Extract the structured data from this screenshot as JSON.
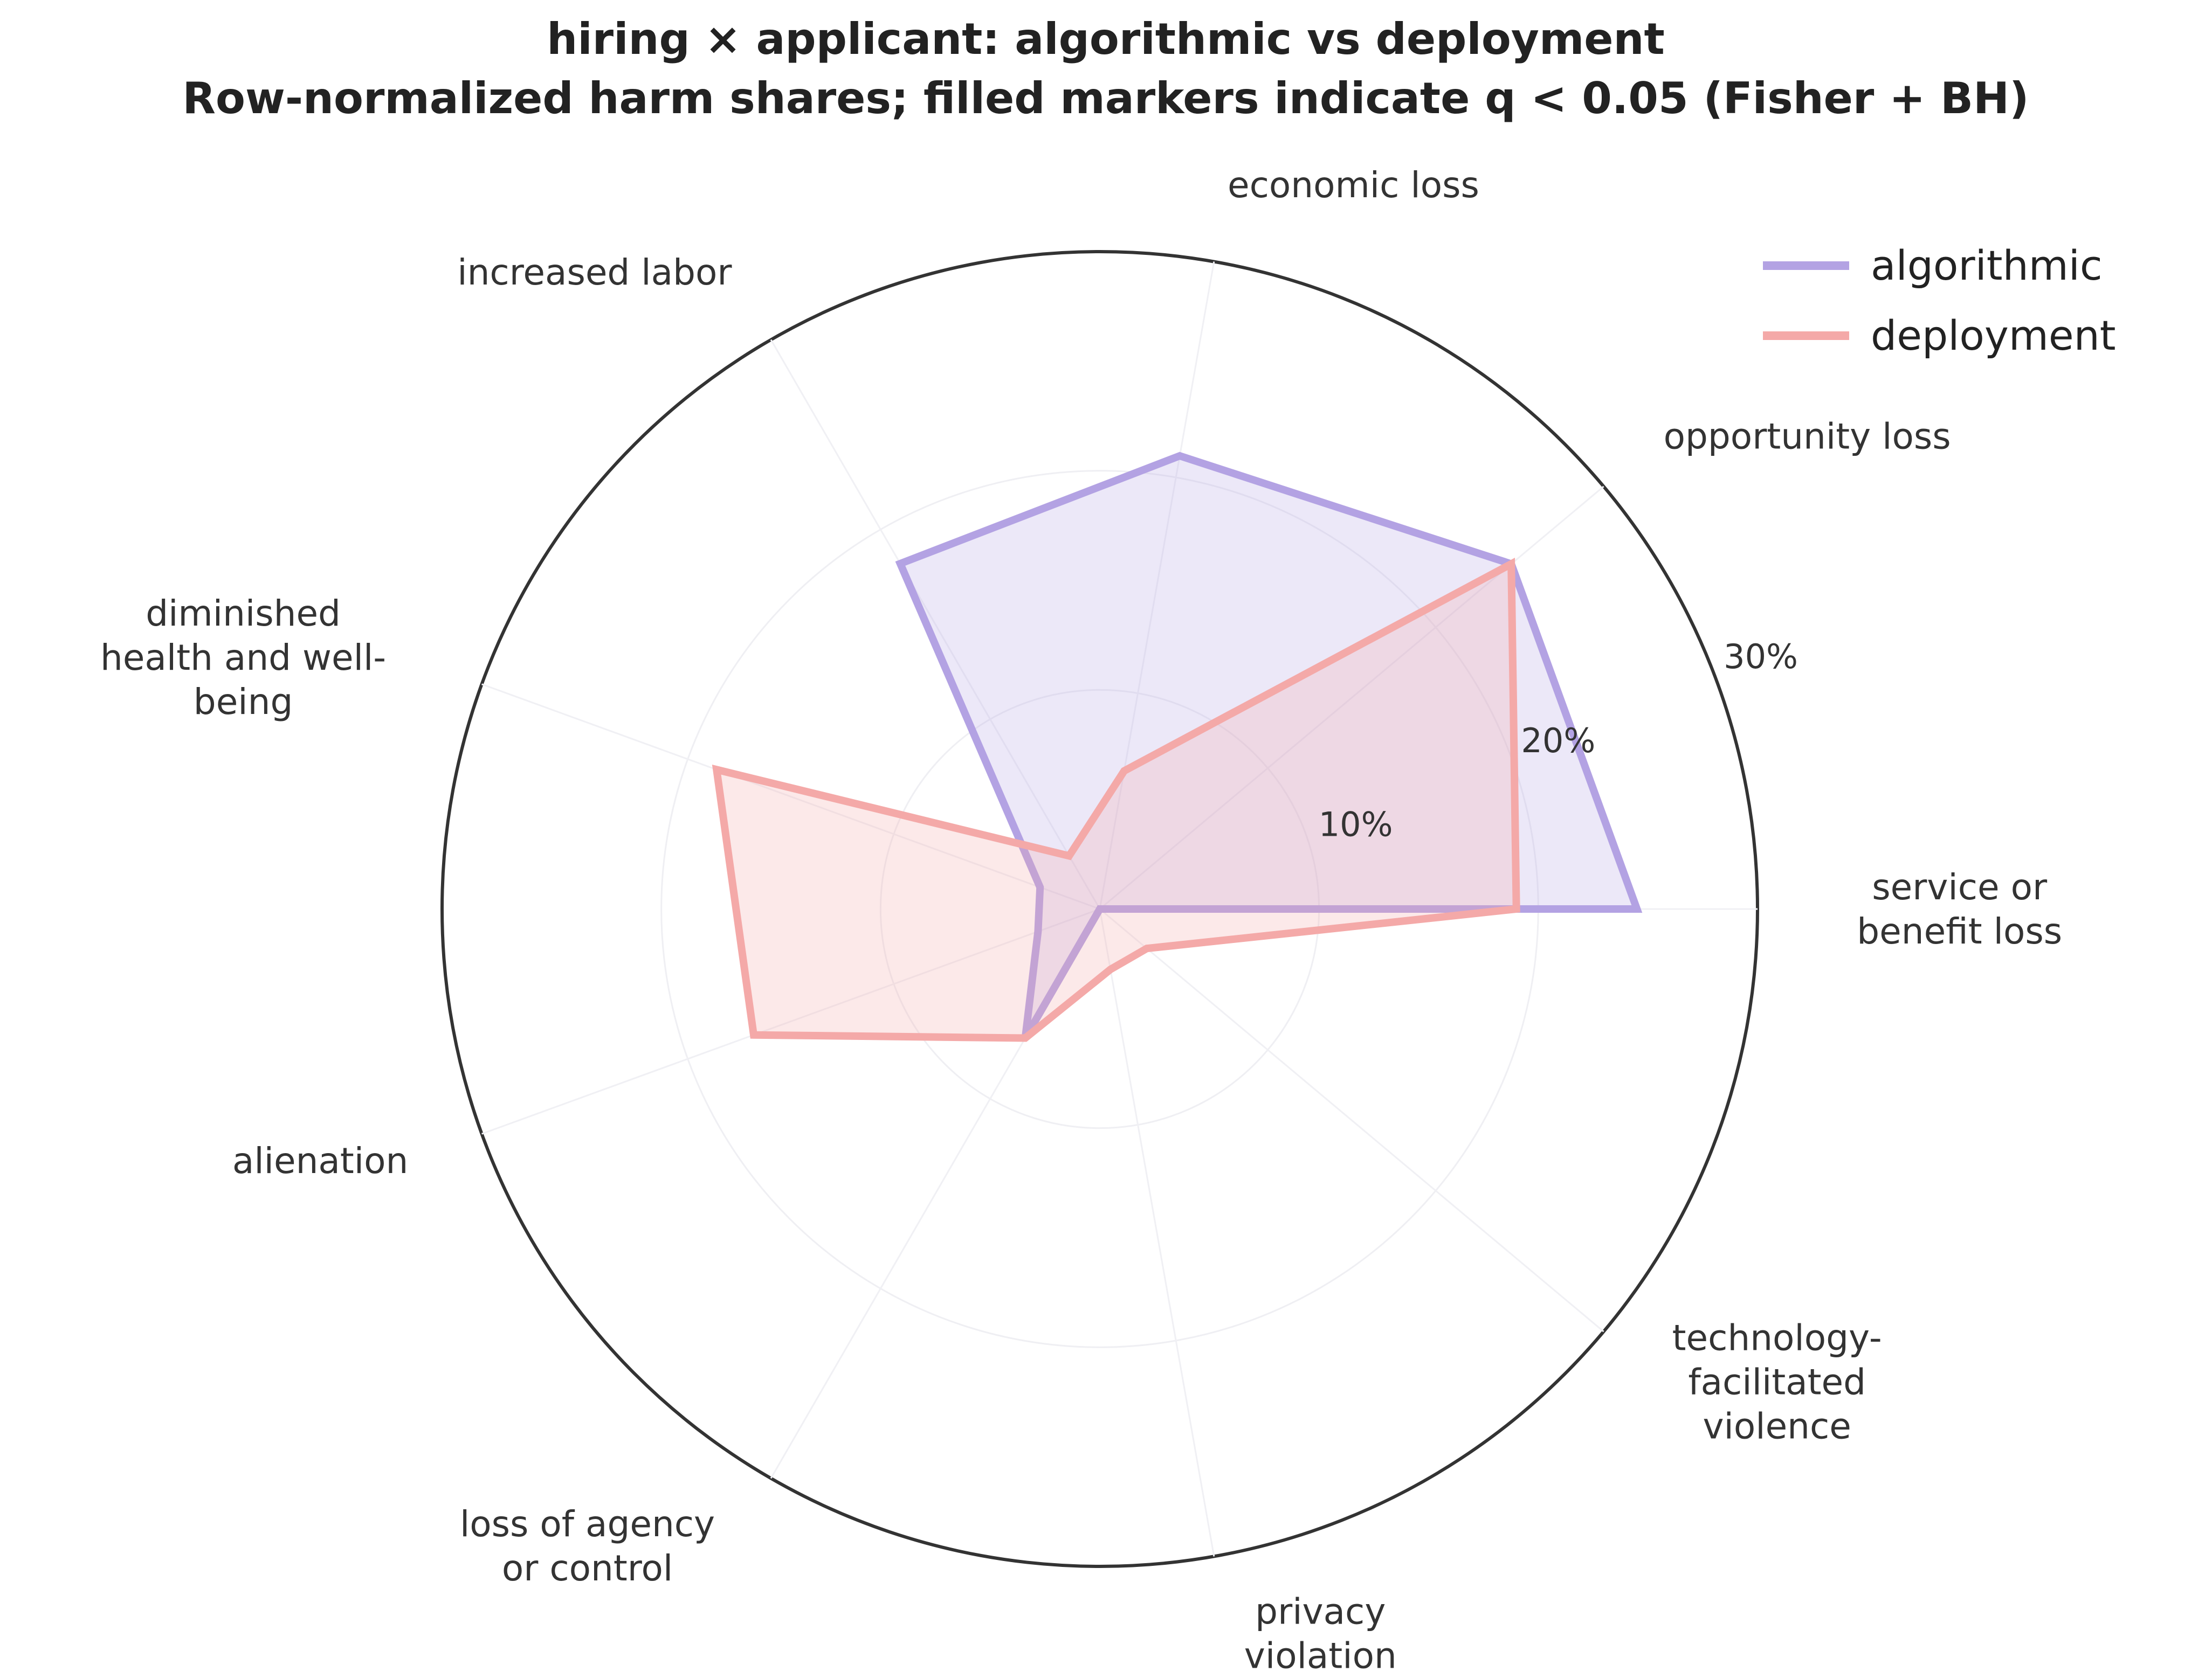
{
  "chart_data": {
    "type": "radar",
    "title": [
      "hiring × applicant: algorithmic vs deployment",
      "Row-normalized harm shares; filled markers indicate q < 0.05 (Fisher + BH)"
    ],
    "categories": [
      [
        "service or",
        "benefit loss"
      ],
      [
        "opportunity loss"
      ],
      [
        "economic loss"
      ],
      [
        "increased labor"
      ],
      [
        "diminished",
        "health and well-",
        "being"
      ],
      [
        "alienation"
      ],
      [
        "loss of agency",
        "or control"
      ],
      [
        "privacy",
        "violation"
      ],
      [
        "technology-",
        "facilitated",
        "violence"
      ]
    ],
    "r_ticks": [
      10,
      20,
      30
    ],
    "r_tick_labels": [
      "10%",
      "20%",
      "30%"
    ],
    "rlim": [
      0,
      30
    ],
    "grid": true,
    "legend_position": "top-right",
    "series": [
      {
        "name": "algorithmic",
        "color": "#b3a2e3",
        "values": [
          24.5,
          24.5,
          21.0,
          18.2,
          2.9,
          3.0,
          6.8,
          0.0,
          0.0
        ]
      },
      {
        "name": "deployment",
        "color": "#f4a9a8",
        "values": [
          19.0,
          24.5,
          6.4,
          2.8,
          18.6,
          16.8,
          6.8,
          2.8,
          2.8
        ]
      }
    ]
  }
}
